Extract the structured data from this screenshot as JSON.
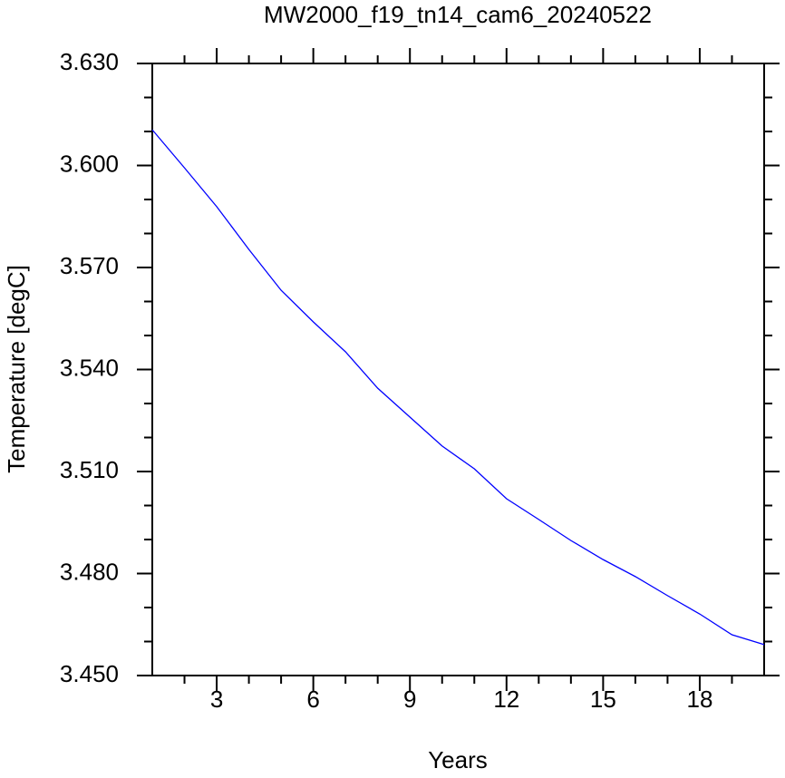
{
  "chart_data": {
    "type": "line",
    "title": "MW2000_f19_tn14_cam6_20240522",
    "x_label": "Years",
    "y_label": "Temperature [degC]",
    "x": [
      1,
      2,
      3,
      4,
      5,
      6,
      7,
      8,
      9,
      10,
      11,
      12,
      13,
      14,
      15,
      16,
      17,
      18,
      19,
      20
    ],
    "series": [
      {
        "name": "Temperature",
        "color": "#0000ff",
        "values": [
          3.6105,
          3.5993,
          3.5879,
          3.5753,
          3.5633,
          3.554,
          3.5452,
          3.5345,
          3.526,
          3.5175,
          3.5108,
          3.502,
          3.4959,
          3.4897,
          3.4841,
          3.4791,
          3.4735,
          3.4681,
          3.462,
          3.4591
        ]
      }
    ],
    "xlim": [
      1,
      20
    ],
    "ylim": [
      3.45,
      3.63
    ],
    "xticks": [
      3,
      6,
      9,
      12,
      15,
      18
    ],
    "xminorticks": [
      2,
      4,
      5,
      7,
      8,
      10,
      11,
      13,
      14,
      16,
      17,
      19
    ],
    "yticks": [
      {
        "value": 3.45,
        "label": "3.450"
      },
      {
        "value": 3.48,
        "label": "3.480"
      },
      {
        "value": 3.51,
        "label": "3.510"
      },
      {
        "value": 3.54,
        "label": "3.540"
      },
      {
        "value": 3.57,
        "label": "3.570"
      },
      {
        "value": 3.6,
        "label": "3.600"
      },
      {
        "value": 3.63,
        "label": "3.630"
      }
    ],
    "yminorticks": [
      3.46,
      3.47,
      3.49,
      3.5,
      3.52,
      3.53,
      3.55,
      3.56,
      3.58,
      3.59,
      3.61,
      3.62
    ]
  }
}
